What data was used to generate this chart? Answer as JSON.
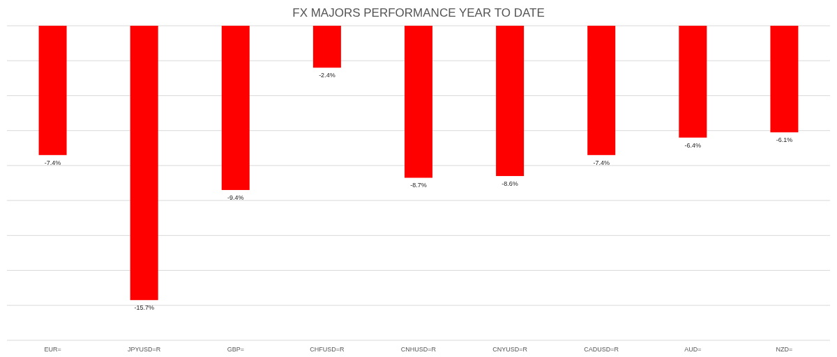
{
  "chart_data": {
    "type": "bar",
    "title": "FX MAJORS PERFORMANCE YEAR TO DATE",
    "categories": [
      "EUR=",
      "JPYUSD=R",
      "GBP=",
      "CHFUSD=R",
      "CNHUSD=R",
      "CNYUSD=R",
      "CADUSD=R",
      "AUD=",
      "NZD="
    ],
    "values": [
      -7.4,
      -15.7,
      -9.4,
      -2.4,
      -8.7,
      -8.6,
      -7.4,
      -6.4,
      -6.1
    ],
    "value_labels": [
      "-7.4%",
      "-15.7%",
      "-9.4%",
      "-2.4%",
      "-8.7%",
      "-8.6%",
      "-7.4%",
      "-6.4%",
      "-6.1%"
    ],
    "color": "#ff0000",
    "ylim": [
      -18,
      0
    ],
    "yticks": [
      {
        "value": 0,
        "label": null
      },
      {
        "value": -2,
        "label": null
      },
      {
        "value": -4,
        "label": null
      },
      {
        "value": -6,
        "label": null
      },
      {
        "value": -8,
        "label": null
      },
      {
        "value": -10,
        "label": null
      },
      {
        "value": -12,
        "label": null
      },
      {
        "value": -14,
        "label": null
      },
      {
        "value": -16,
        "label": null
      },
      {
        "value": -18,
        "label": null
      }
    ],
    "tick_labels": "x",
    "grid": "y"
  }
}
